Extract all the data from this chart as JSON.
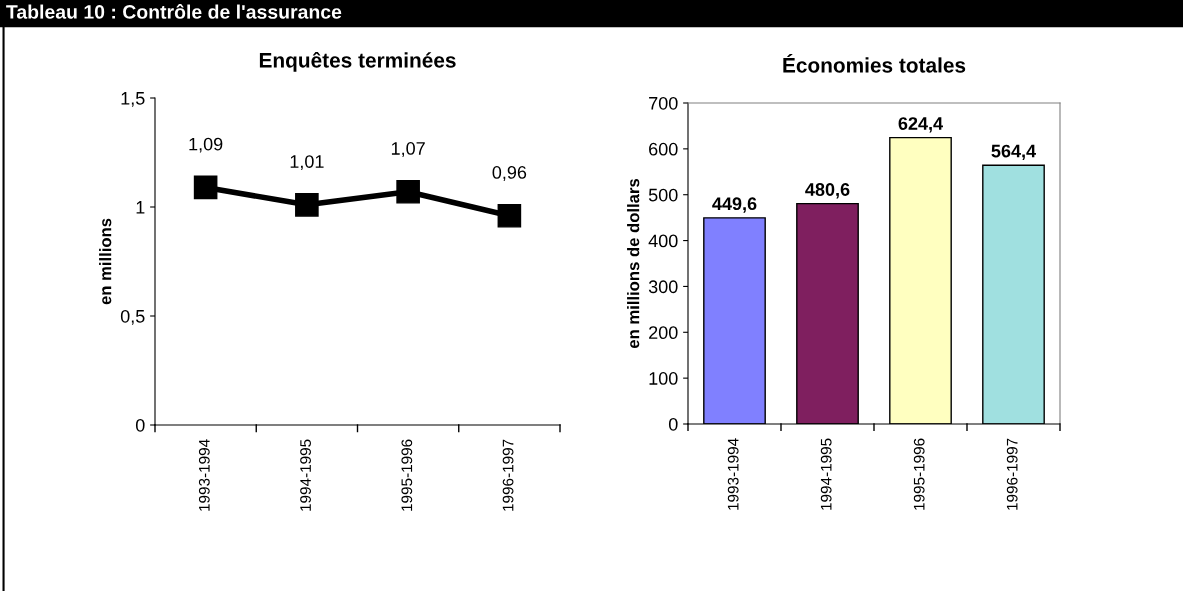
{
  "chart_data": [
    {
      "type": "other",
      "title": "Tableau 10 : Contrôle de l'assurance"
    },
    {
      "type": "line",
      "title": "Enquêtes terminées",
      "ylabel": "en millions",
      "categories": [
        "1993-1994",
        "1994-1995",
        "1995-1996",
        "1996-1997"
      ],
      "series": [
        {
          "color": "#000000",
          "values": [
            1.09,
            1.01,
            1.07,
            0.96
          ]
        }
      ],
      "value_labels": [
        "1,09",
        "1,01",
        "1,07",
        "0,96"
      ],
      "marker": "square",
      "line_style": "solid",
      "ylim": [
        0,
        1.5
      ],
      "yticks": [
        0,
        {
          "value": 0.5,
          "label": "0,5"
        },
        1,
        {
          "value": 1.5,
          "label": "1,5"
        }
      ],
      "grid": false,
      "legend": false
    },
    {
      "type": "bar",
      "title": "Économies totales",
      "ylabel": "en millions de dollars",
      "categories": [
        "1993-1994",
        "1994-1995",
        "1995-1996",
        "1996-1997"
      ],
      "values": [
        449.6,
        480.6,
        624.4,
        564.4
      ],
      "colors": [
        "#8080ff",
        "#7f1f5f",
        "#ffffc0",
        "#a0e0e0"
      ],
      "value_labels": [
        "449,6",
        "480,6",
        "624,4",
        "564,4"
      ],
      "ylim": [
        0,
        700
      ],
      "yticks": [
        0,
        100,
        200,
        300,
        400,
        500,
        600,
        700
      ],
      "grid": false,
      "legend": false
    }
  ]
}
